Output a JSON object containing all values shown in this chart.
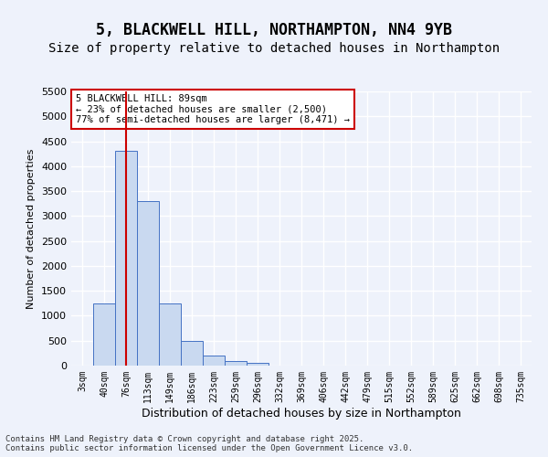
{
  "title": "5, BLACKWELL HILL, NORTHAMPTON, NN4 9YB",
  "subtitle": "Size of property relative to detached houses in Northampton",
  "xlabel": "Distribution of detached houses by size in Northampton",
  "ylabel": "Number of detached properties",
  "bins": [
    "3sqm",
    "40sqm",
    "76sqm",
    "113sqm",
    "149sqm",
    "186sqm",
    "223sqm",
    "259sqm",
    "296sqm",
    "332sqm",
    "369sqm",
    "406sqm",
    "442sqm",
    "479sqm",
    "515sqm",
    "552sqm",
    "589sqm",
    "625sqm",
    "662sqm",
    "698sqm",
    "735sqm"
  ],
  "values": [
    0,
    1250,
    4300,
    3300,
    1250,
    500,
    200,
    100,
    60,
    0,
    0,
    0,
    0,
    0,
    0,
    0,
    0,
    0,
    0,
    0,
    0
  ],
  "bar_color": "#c9d9f0",
  "bar_edge_color": "#4472c4",
  "red_line_x": 2.0,
  "annotation_text": "5 BLACKWELL HILL: 89sqm\n← 23% of detached houses are smaller (2,500)\n77% of semi-detached houses are larger (8,471) →",
  "annotation_box_color": "#ffffff",
  "annotation_box_edge": "#cc0000",
  "red_line_color": "#cc0000",
  "footer_text": "Contains HM Land Registry data © Crown copyright and database right 2025.\nContains public sector information licensed under the Open Government Licence v3.0.",
  "ylim": [
    0,
    5500
  ],
  "yticks": [
    0,
    500,
    1000,
    1500,
    2000,
    2500,
    3000,
    3500,
    4000,
    4500,
    5000,
    5500
  ],
  "background_color": "#eef2fb",
  "grid_color": "#ffffff",
  "title_fontsize": 12,
  "subtitle_fontsize": 10
}
